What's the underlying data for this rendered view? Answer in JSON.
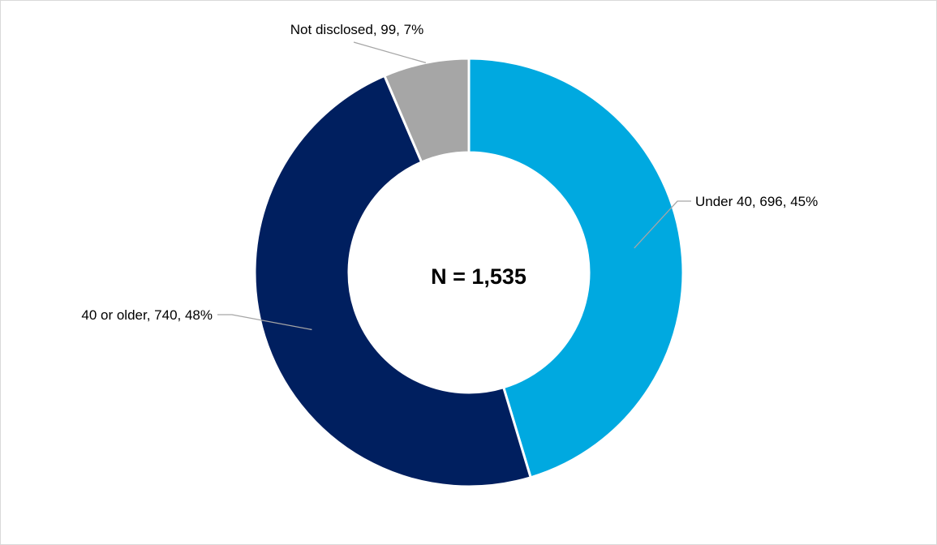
{
  "chart_data": {
    "type": "pie",
    "donut": true,
    "center_label": "N = 1,535",
    "slices": [
      {
        "label": "Under 40",
        "value": 696,
        "percent": 45,
        "data_label": "Under 40, 696, 45%",
        "color": "#00a9e0"
      },
      {
        "label": "40 or older",
        "value": 740,
        "percent": 48,
        "data_label": "40 or older, 740, 48%",
        "color": "#001f5f"
      },
      {
        "label": "Not disclosed",
        "value": 99,
        "percent": 7,
        "data_label": "Not disclosed, 99, 7%",
        "color": "#a6a6a6"
      }
    ],
    "start": "12 o'clock",
    "direction": "clockwise",
    "legend": "none",
    "leader_line_color": "#a6a6a6"
  }
}
